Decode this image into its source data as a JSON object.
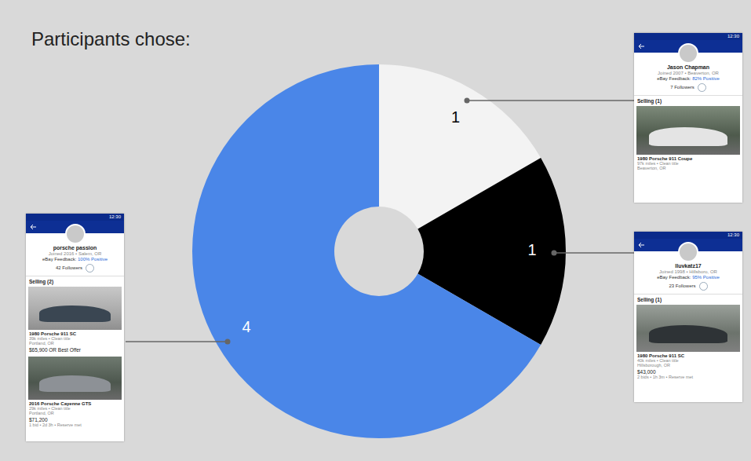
{
  "chart_data": {
    "type": "pie",
    "title": "Participants chose:",
    "categories": [
      "Jason Chapman",
      "lluvkatz17",
      "porsche passion"
    ],
    "values": [
      1,
      1,
      4
    ],
    "colors": [
      "#f3f3f3",
      "#000000",
      "#4a86e8"
    ],
    "data_labels": true,
    "annotations": [
      {
        "status_time": "12:30",
        "joined": "Joined 2007 • Beaverton, OR",
        "feedback_label": "eBay Feedback:",
        "feedback": "82% Positive",
        "followers": "7 Followers",
        "selling": "Selling (1)",
        "listings": [
          {
            "title": "1980 Porsche 911 Coupe",
            "details": "97k miles • Clean title",
            "location": "Beaverton, OR"
          }
        ]
      },
      {
        "status_time": "12:30",
        "joined": "Joined 1998 • Hillsboro, OR",
        "feedback_label": "eBay Feedback:",
        "feedback": "95% Positive",
        "followers": "23 Followers",
        "selling": "Selling (1)",
        "listings": [
          {
            "title": "1980 Porsche 911 SC",
            "details": "40k miles • Clean title",
            "location": "Hillsborough, OR",
            "price": "$43,000",
            "meta": "2 bids • 1h 3m • Reserve met"
          }
        ]
      },
      {
        "status_time": "12:30",
        "joined": "Joined 2016 • Salem, OR",
        "feedback_label": "eBay Feedback:",
        "feedback": "100% Positive",
        "followers": "42 Followers",
        "selling": "Selling (2)",
        "listings": [
          {
            "title": "1980 Porsche 911 SC",
            "details": "39k miles • Clean title",
            "location": "Portland, OR",
            "price": "$65,900 OR Best Offer"
          },
          {
            "title": "2016 Porsche Cayenne GTS",
            "details": "29k miles • Clean title",
            "location": "Portland, OR",
            "price": "$71,200",
            "meta": "1 bid • 2d 3h • Reserve met"
          }
        ]
      }
    ]
  }
}
